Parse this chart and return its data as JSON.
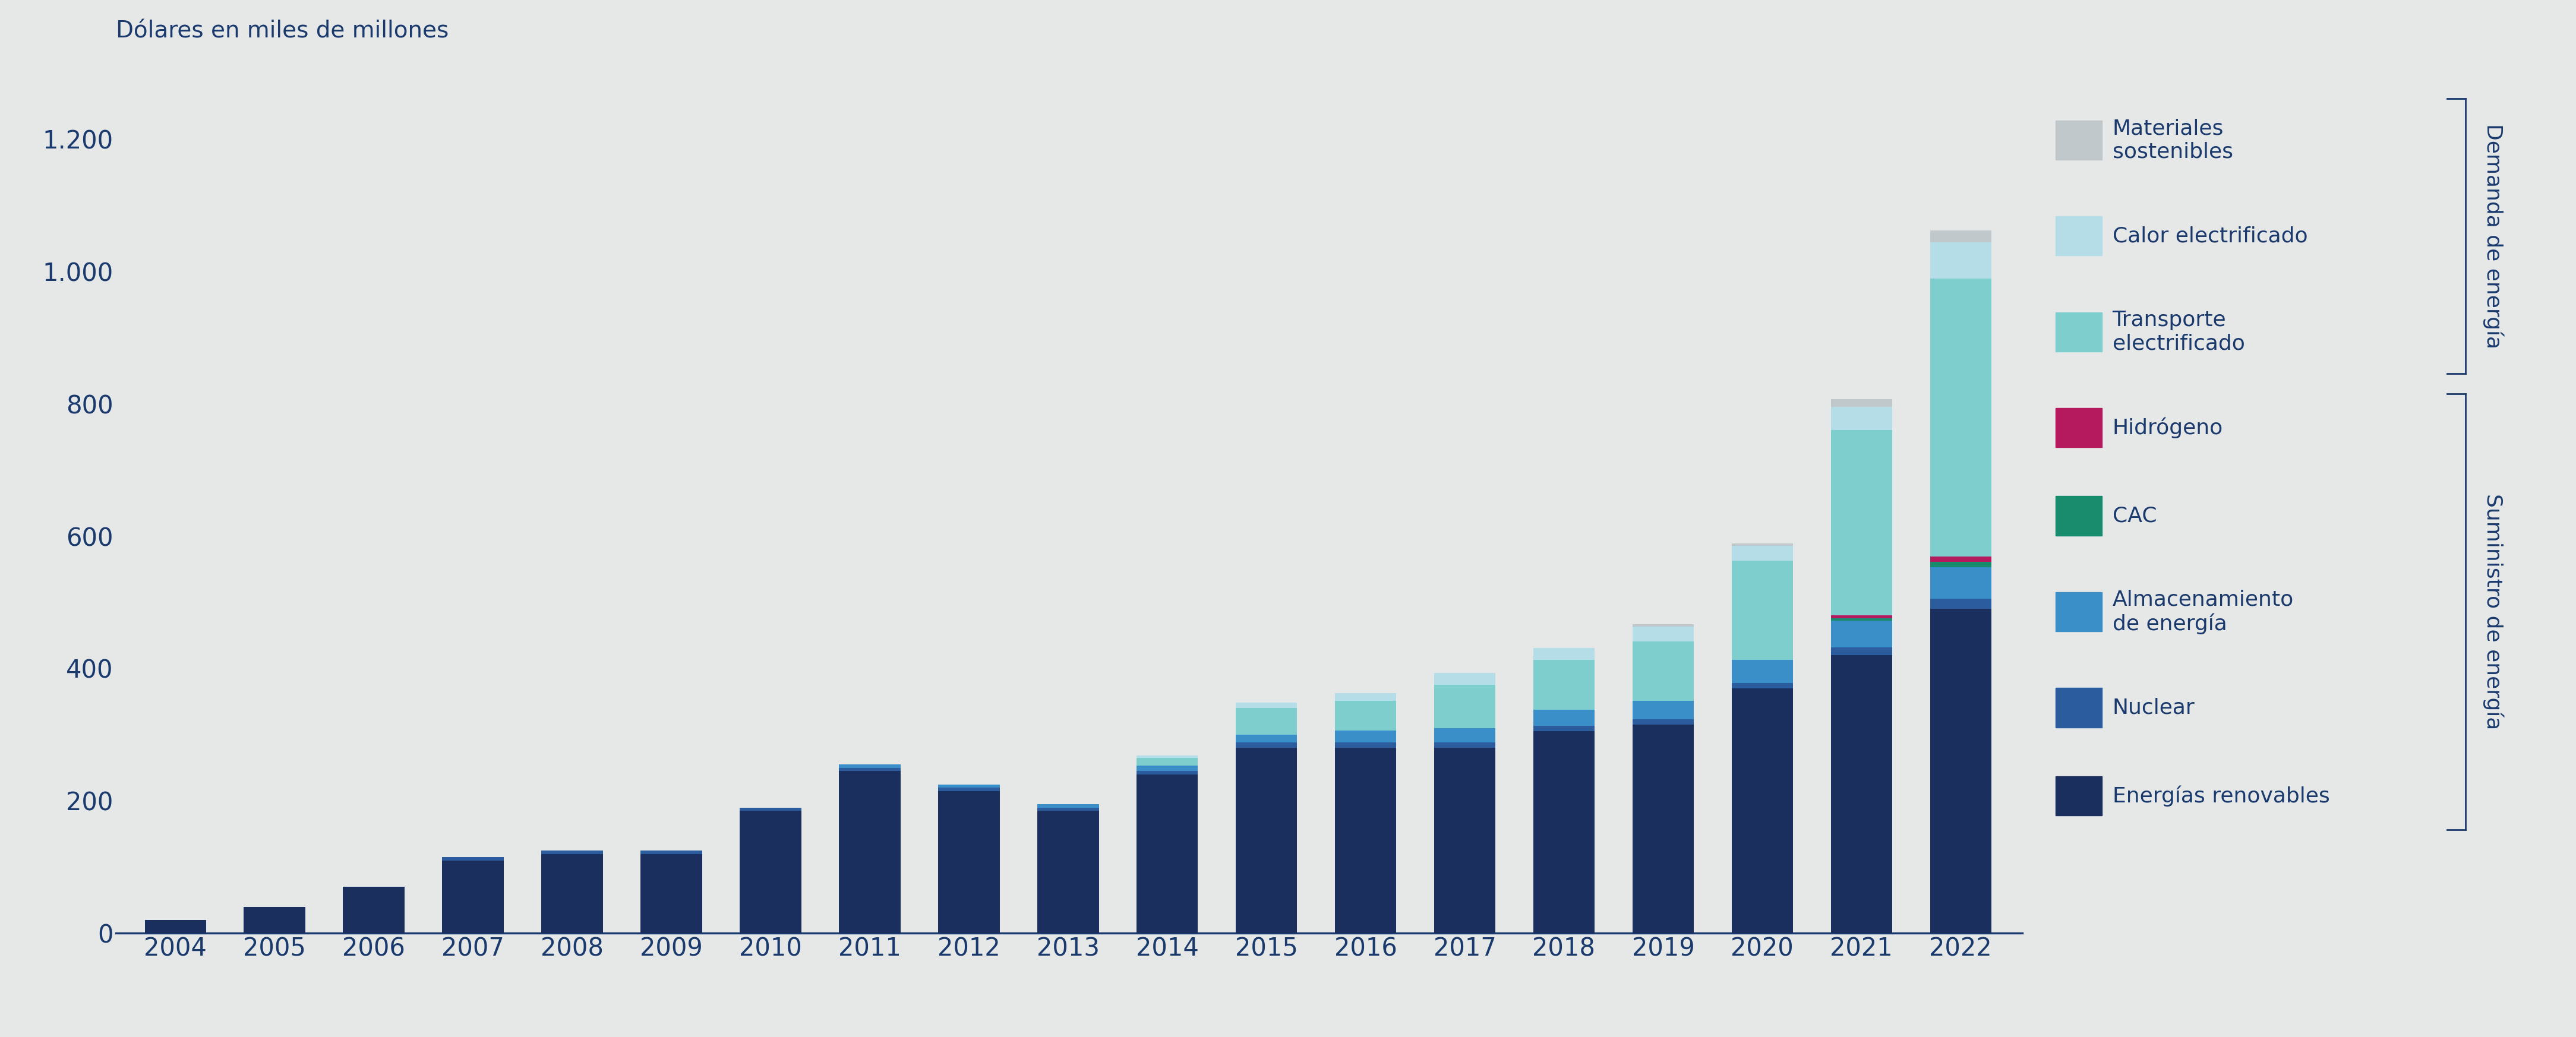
{
  "years": [
    2004,
    2005,
    2006,
    2007,
    2008,
    2009,
    2010,
    2011,
    2012,
    2013,
    2014,
    2015,
    2016,
    2017,
    2018,
    2019,
    2020,
    2021,
    2022
  ],
  "energias_renovables": [
    20,
    40,
    70,
    110,
    120,
    120,
    185,
    245,
    215,
    185,
    240,
    280,
    280,
    280,
    305,
    315,
    370,
    420,
    490
  ],
  "nuclear": [
    0,
    0,
    0,
    5,
    5,
    5,
    5,
    5,
    5,
    5,
    5,
    8,
    8,
    8,
    8,
    8,
    8,
    12,
    15
  ],
  "almacenamiento": [
    0,
    0,
    0,
    0,
    0,
    0,
    0,
    5,
    5,
    5,
    8,
    12,
    18,
    22,
    25,
    28,
    35,
    40,
    48
  ],
  "cac": [
    0,
    0,
    0,
    0,
    0,
    0,
    0,
    0,
    0,
    0,
    0,
    0,
    0,
    0,
    0,
    0,
    0,
    4,
    8
  ],
  "hidrogeno": [
    0,
    0,
    0,
    0,
    0,
    0,
    0,
    0,
    0,
    0,
    0,
    0,
    0,
    0,
    0,
    0,
    0,
    4,
    8
  ],
  "transporte_electrif": [
    0,
    0,
    0,
    0,
    0,
    0,
    0,
    0,
    0,
    0,
    12,
    40,
    45,
    65,
    75,
    90,
    150,
    280,
    420
  ],
  "calor_electrif": [
    0,
    0,
    0,
    0,
    0,
    0,
    0,
    0,
    0,
    0,
    4,
    8,
    12,
    18,
    18,
    22,
    22,
    35,
    55
  ],
  "materiales_sostenib": [
    0,
    0,
    0,
    0,
    0,
    0,
    0,
    0,
    0,
    0,
    0,
    0,
    0,
    0,
    0,
    4,
    4,
    12,
    18
  ],
  "colors": {
    "energias_renovables": "#1b2f5e",
    "nuclear": "#2b5c9e",
    "almacenamiento": "#3a8fc8",
    "cac": "#1a8c6e",
    "hidrogeno": "#b5195e",
    "transporte_electrif": "#7ecece",
    "calor_electrif": "#b5dde8",
    "materiales_sostenib": "#c0c8cc"
  },
  "legend_labels": {
    "materiales_sostenib": "Materiales\nsostenibles",
    "calor_electrif": "Calor electrificado",
    "transporte_electrif": "Transporte\nelectrificado",
    "hidrogeno": "Hidrógeno",
    "cac": "CAC",
    "almacenamiento": "Almacenamiento\nde energía",
    "nuclear": "Nuclear",
    "energias_renovables": "Energías renovables"
  },
  "ylabel": "Dólares en miles de millones",
  "ylim": [
    0,
    1300
  ],
  "yticks": [
    0,
    200,
    400,
    600,
    800,
    1000,
    1200
  ],
  "background_color": "#e6e8e8",
  "axis_color": "#1a3a6e",
  "label_demanda": "Demanda de energía",
  "label_suministro": "Suministro de energía"
}
